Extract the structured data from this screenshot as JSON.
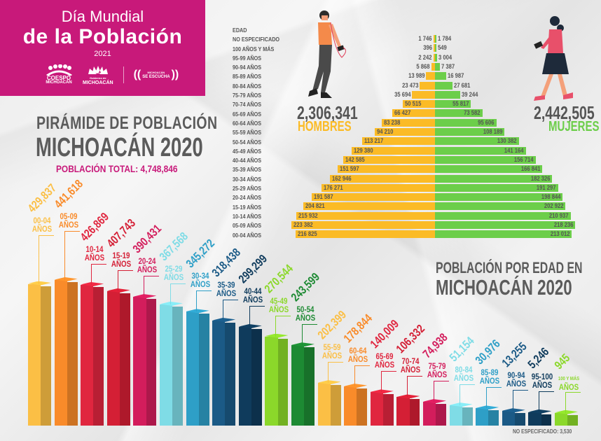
{
  "header": {
    "line1": "Día Mundial",
    "line2": "de la Población",
    "year": "2021",
    "logos": {
      "coespo": "COESPO",
      "coespo_sub": "MICHOACÁN",
      "gobierno_top": "Gobierno de",
      "gobierno": "MICHOACÁN",
      "radio_top": "MICHOACÁN",
      "radio_bottom": "SE ESCUCHA"
    },
    "bg_color": "#c8197a"
  },
  "pyramid_title": {
    "line1": "PIRÁMIDE DE POBLACIÓN",
    "line2": "MICHOACÁN 2020",
    "total_label": "POBLACIÓN TOTAL:  4,748,846"
  },
  "pyramid": {
    "header": "EDAD",
    "men_total": "2,306,341",
    "men_label": "HOMBRES",
    "women_total": "2,442,505",
    "women_label": "MUJERES",
    "men_color": "#fbbb26",
    "women_color": "#6cce4a"
  },
  "bars_title": {
    "line1": "POBLACIÓN POR EDAD EN",
    "line2": "MICHOACÁN 2020"
  },
  "no_especificado_label": "NO ESPECIFICADO:   3,530",
  "chart_data": [
    {
      "type": "bar",
      "orientation": "horizontal-pyramid",
      "title": "PIRÁMIDE DE POBLACIÓN MICHOACÁN 2020",
      "categories": [
        "NO ESPECIFICADO",
        "100 AÑOS Y MÁS",
        "95-99 AÑOS",
        "90-94 AÑOS",
        "85-89 AÑOS",
        "80-84 AÑOS",
        "75-79 AÑOS",
        "70-74 AÑOS",
        "65-69 AÑOS",
        "60-64 AÑOS",
        "55-59 AÑOS",
        "50-54 AÑOS",
        "45-49 AÑOS",
        "40-44 AÑOS",
        "35-39 AÑOS",
        "30-34 AÑOS",
        "25-29 AÑOS",
        "20-24 AÑOS",
        "15-19 AÑOS",
        "10-14 AÑOS",
        "05-09 AÑOS",
        "00-04 AÑOS"
      ],
      "series": [
        {
          "name": "HOMBRES",
          "color": "#fbbb26",
          "values": [
            1746,
            396,
            2242,
            5868,
            13989,
            23473,
            35694,
            50515,
            66427,
            83238,
            94210,
            113217,
            129380,
            142585,
            151597,
            162946,
            176271,
            191587,
            204821,
            215932,
            223382,
            216825
          ],
          "labels": [
            "1 746",
            "396",
            "2 242",
            "5 868",
            "13 989",
            "23 473",
            "35 694",
            "50 515",
            "66 427",
            "83 238",
            "94 210",
            "113 217",
            "129 380",
            "142 585",
            "151 597",
            "162 946",
            "176 271",
            "191 587",
            "204 821",
            "215 932",
            "223 382",
            "216 825"
          ]
        },
        {
          "name": "MUJERES",
          "color": "#6cce4a",
          "values": [
            1784,
            549,
            3004,
            7387,
            16987,
            27681,
            39244,
            55817,
            73582,
            95606,
            108189,
            130382,
            141164,
            156714,
            166841,
            182326,
            191297,
            198844,
            202922,
            210937,
            218236,
            213012
          ],
          "labels": [
            "1 784",
            "549",
            "3 004",
            "7 387",
            "16 987",
            "27 681",
            "39 244",
            "55 817",
            "73 582",
            "95 606",
            "108 189",
            "130 382",
            "141 164",
            "156 714",
            "166 841",
            "182 326",
            "191 297",
            "198 844",
            "202 922",
            "210 937",
            "218 236",
            "213 012"
          ]
        }
      ],
      "totals": {
        "HOMBRES": 2306341,
        "MUJERES": 2442505,
        "TOTAL": 4748846
      },
      "xlabel": "",
      "ylabel": "EDAD",
      "grid": false
    },
    {
      "type": "bar",
      "title": "POBLACIÓN POR EDAD EN MICHOACÁN 2020",
      "categories": [
        "00-04 AÑOS",
        "05-09 AÑOS",
        "10-14 AÑOS",
        "15-19 AÑOS",
        "20-24 AÑOS",
        "25-29 AÑOS",
        "30-34 AÑOS",
        "35-39 AÑOS",
        "40-44 AÑOS",
        "45-49 AÑOS",
        "50-54 AÑOS",
        "55-59 AÑOS",
        "60-64 AÑOS",
        "65-69 AÑOS",
        "70-74 AÑOS",
        "75-79 AÑOS",
        "80-84 AÑOS",
        "85-89 AÑOS",
        "90-94 AÑOS",
        "95-100 AÑOS",
        "100 Y MÁS AÑOS"
      ],
      "values": [
        429837,
        441618,
        426869,
        407743,
        390431,
        367568,
        345272,
        318438,
        299299,
        270544,
        243599,
        202399,
        178844,
        140009,
        106332,
        74938,
        51154,
        30976,
        13255,
        5246,
        945
      ],
      "value_labels": [
        "429,837",
        "441,618",
        "426,869",
        "407,743",
        "390,431",
        "367,568",
        "345,272",
        "318,438",
        "299,299",
        "270,544",
        "243,599",
        "202,399",
        "178,844",
        "140,009",
        "106,332",
        "74,938",
        "51,154",
        "30,976",
        "13,255",
        "5,246",
        "945"
      ],
      "colors": [
        "#fbbf45",
        "#f98b2a",
        "#e0263f",
        "#d41f35",
        "#d31d5c",
        "#7fdce6",
        "#2e9fc7",
        "#1b5a86",
        "#0f3b5c",
        "#8bd82a",
        "#1d8a33",
        "#fbbf45",
        "#f98b2a",
        "#e0263f",
        "#d41f35",
        "#d31d5c",
        "#7fdce6",
        "#2e9fc7",
        "#1b5a86",
        "#0f3b5c",
        "#8bd82a"
      ],
      "annotation": "NO ESPECIFICADO: 3,530",
      "xlabel": "",
      "ylabel": "",
      "grid": false,
      "legend": "none"
    }
  ]
}
